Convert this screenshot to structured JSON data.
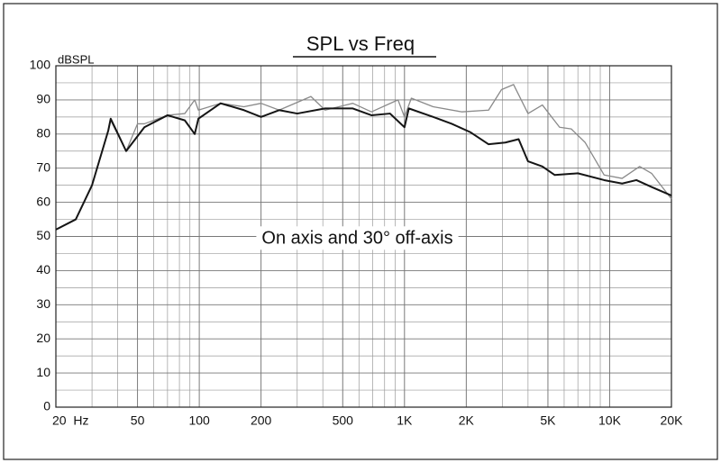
{
  "chart_data": {
    "type": "line",
    "title": "SPL vs Freq",
    "y_label": "dBSPL",
    "annotation": "On axis and 30° off-axis",
    "x_scale": "log",
    "xlim": [
      20,
      20000
    ],
    "ylim": [
      0,
      100
    ],
    "xticks": [
      {
        "value": 20,
        "label": "20  Hz"
      },
      50,
      100,
      200,
      500,
      {
        "value": 1000,
        "label": "1K"
      },
      {
        "value": 2000,
        "label": "2K"
      },
      {
        "value": 5000,
        "label": "5K"
      },
      {
        "value": 10000,
        "label": "10K"
      },
      {
        "value": 20000,
        "label": "20K"
      }
    ],
    "x_grid": [
      20,
      30,
      40,
      50,
      60,
      70,
      80,
      90,
      100,
      200,
      300,
      400,
      500,
      600,
      700,
      800,
      900,
      1000,
      2000,
      3000,
      4000,
      5000,
      6000,
      7000,
      8000,
      9000,
      10000,
      20000
    ],
    "yticks": [
      0,
      10,
      20,
      30,
      40,
      50,
      60,
      70,
      80,
      90,
      100
    ],
    "y_grid": [
      5,
      15,
      25,
      35,
      45,
      55,
      65,
      75,
      85,
      95
    ],
    "grid": true,
    "series": [
      {
        "color": "#8a8a8a",
        "width": 1.3,
        "x": [
          20,
          25,
          30,
          36,
          37,
          44,
          50,
          54,
          70,
          85,
          95,
          99,
          127,
          165,
          200,
          245,
          350,
          410,
          560,
          690,
          930,
          1000,
          1080,
          1380,
          1900,
          2570,
          2970,
          3400,
          4000,
          4700,
          5700,
          6500,
          7600,
          9400,
          11500,
          14000,
          16000,
          20000
        ],
        "values": [
          52,
          55,
          65,
          81,
          84,
          75,
          83,
          83,
          85.5,
          86,
          90,
          87,
          89,
          88,
          89,
          87,
          91,
          87,
          89,
          86.5,
          90,
          85,
          90.5,
          88,
          86.5,
          87,
          93,
          94.5,
          86,
          88.5,
          82,
          81.5,
          77.5,
          68,
          67,
          70.5,
          68.5,
          61
        ]
      },
      {
        "color": "#151515",
        "width": 2,
        "x": [
          20,
          25,
          30,
          36,
          37,
          44,
          54,
          70,
          85,
          95,
          99,
          127,
          165,
          200,
          245,
          300,
          410,
          560,
          690,
          850,
          1000,
          1050,
          1380,
          1700,
          2100,
          2570,
          3100,
          3600,
          4000,
          4700,
          5400,
          7000,
          9400,
          11500,
          13500,
          16000,
          20000
        ],
        "values": [
          52,
          55,
          65,
          81,
          84.5,
          75,
          82,
          85.5,
          84,
          80,
          84.5,
          89,
          87,
          85,
          87,
          86,
          87.5,
          87.5,
          85.5,
          86,
          82,
          87.5,
          85,
          83,
          80.5,
          77,
          77.5,
          78.5,
          72,
          70.5,
          68,
          68.5,
          66.5,
          65.5,
          66.5,
          64.5,
          62
        ]
      }
    ]
  }
}
